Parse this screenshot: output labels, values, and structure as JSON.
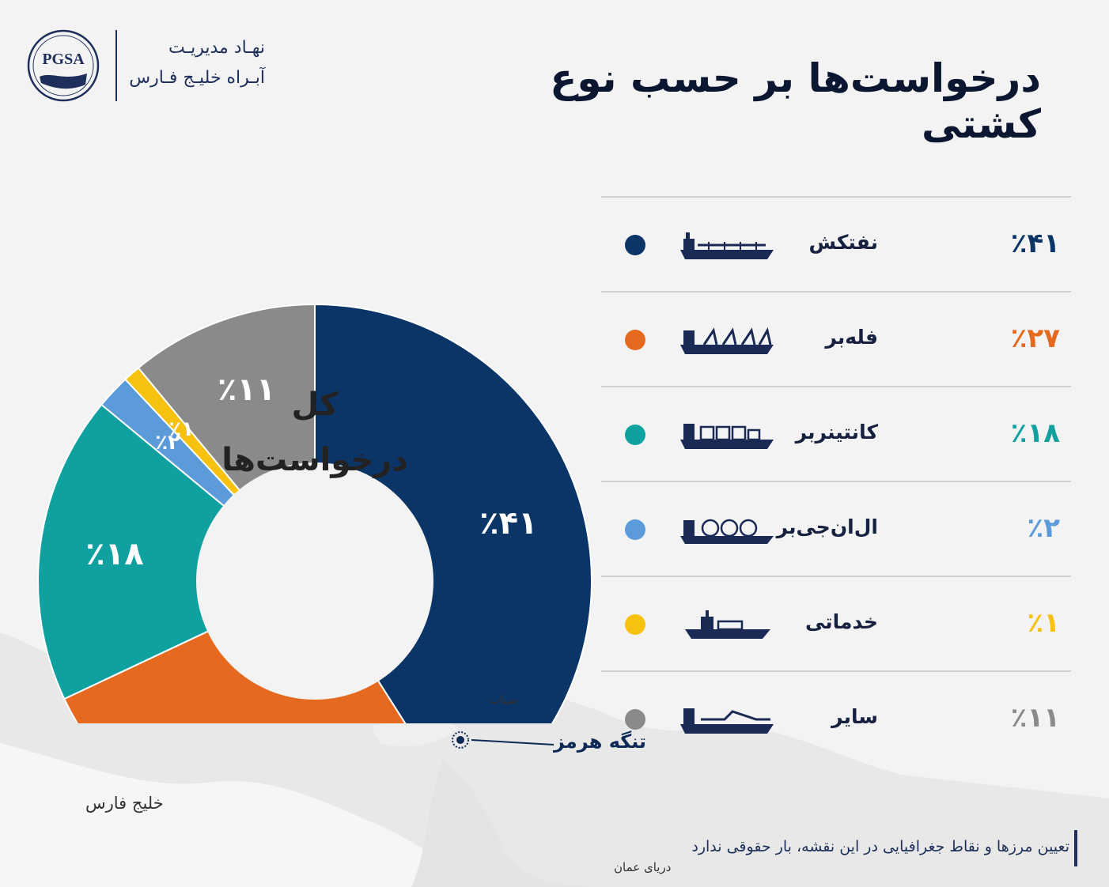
{
  "header": {
    "logo_text": "PGSA",
    "org_line1": "نهـاد مدیریـت",
    "org_line2": "آبـراه خلیـج فـارس",
    "title": "درخواست‌ها بر حسب نوع کشتی"
  },
  "chart_data": {
    "type": "pie",
    "variant": "donut",
    "center_label_line1": "کل",
    "center_label_line2": "درخواست‌ها",
    "categories": [
      "نفتکش",
      "فله‌بر",
      "کانتینربر",
      "ال‌ان‌جی‌بر",
      "خدماتی",
      "سایر"
    ],
    "values": [
      41,
      27,
      18,
      2,
      1,
      11
    ],
    "value_labels": [
      "٪۴۱",
      "٪۲۷",
      "٪۱۸",
      "٪۲",
      "٪۱",
      "٪۱۱"
    ],
    "colors": [
      "#0b3566",
      "#e56a1f",
      "#0ea1a0",
      "#5b9bd9",
      "#f7c20f",
      "#8a8a8a"
    ],
    "legend_placement": "right"
  },
  "legend": {
    "items": [
      {
        "label": "نفتکش",
        "pct": "٪۴۱",
        "color": "#0b3566",
        "icon": "tanker-ship-icon"
      },
      {
        "label": "فله‌بر",
        "pct": "٪۲۷",
        "color": "#e56a1f",
        "icon": "bulk-carrier-icon"
      },
      {
        "label": "کانتینربر",
        "pct": "٪۱۸",
        "color": "#0ea1a0",
        "icon": "container-ship-icon"
      },
      {
        "label": "ال‌ان‌جی‌بر",
        "pct": "٪۲",
        "color": "#5b9bd9",
        "icon": "lng-carrier-icon"
      },
      {
        "label": "خدماتی",
        "pct": "٪۱",
        "color": "#f7c20f",
        "icon": "service-vessel-icon"
      },
      {
        "label": "سایر",
        "pct": "٪۱۱",
        "color": "#8a8a8a",
        "icon": "other-ship-icon"
      }
    ]
  },
  "map": {
    "minab": "میناب",
    "hormuz": "تنگه هرمز",
    "gulf": "خلیج فارس",
    "oman_sea": "دریای عمان"
  },
  "footer": {
    "disclaimer": "تعیین مرزها و نقاط جغرافیایی در این نقشه، بار حقوقی ندارد"
  }
}
